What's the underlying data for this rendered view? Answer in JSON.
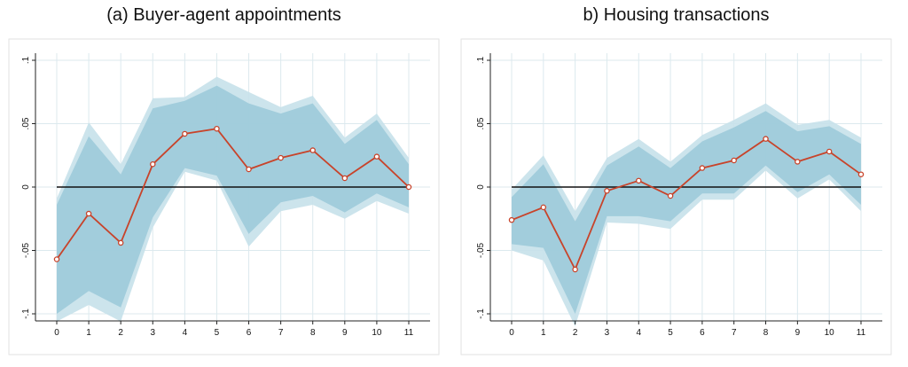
{
  "chart_data": [
    {
      "type": "line",
      "title": "(a) Buyer-agent appointments",
      "xlabel": "",
      "ylabel": "",
      "x": [
        0,
        1,
        2,
        3,
        4,
        5,
        6,
        7,
        8,
        9,
        10,
        11
      ],
      "xlim": [
        0,
        11
      ],
      "ylim": [
        -0.1,
        0.1
      ],
      "y_ticks": [
        0.1,
        0.05,
        0,
        -0.05,
        -0.1
      ],
      "y_tick_labels": [
        ".1",
        ".05",
        "0",
        "-.05",
        "-.1"
      ],
      "x_tick_labels": [
        "0",
        "1",
        "2",
        "3",
        "4",
        "5",
        "6",
        "7",
        "8",
        "9",
        "10",
        "11"
      ],
      "series": [
        {
          "values": [
            -0.057,
            -0.021,
            -0.044,
            0.018,
            0.042,
            0.046,
            0.014,
            0.023,
            0.029,
            0.007,
            0.024,
            0.0
          ]
        }
      ],
      "outer_band": {
        "lower": [
          -0.106,
          -0.093,
          -0.106,
          -0.032,
          0.012,
          0.005,
          -0.047,
          -0.019,
          -0.014,
          -0.025,
          -0.011,
          -0.021
        ],
        "upper": [
          -0.009,
          0.051,
          0.018,
          0.07,
          0.071,
          0.087,
          0.075,
          0.063,
          0.072,
          0.039,
          0.058,
          0.023
        ]
      },
      "inner_band": {
        "lower": [
          -0.1,
          -0.082,
          -0.095,
          -0.024,
          0.015,
          0.009,
          -0.037,
          -0.012,
          -0.007,
          -0.02,
          -0.005,
          -0.016
        ],
        "upper": [
          -0.014,
          0.04,
          0.01,
          0.062,
          0.068,
          0.08,
          0.066,
          0.058,
          0.066,
          0.034,
          0.053,
          0.018
        ]
      },
      "grid": true,
      "zero_line": true,
      "colors": {
        "line": "#c8432a",
        "outer_band": "#c7e1ea",
        "inner_band": "#9fcbdb",
        "grid": "#dce9ee"
      }
    },
    {
      "type": "line",
      "title": "b) Housing transactions",
      "xlabel": "",
      "ylabel": "",
      "x": [
        0,
        1,
        2,
        3,
        4,
        5,
        6,
        7,
        8,
        9,
        10,
        11
      ],
      "xlim": [
        0,
        11
      ],
      "ylim": [
        -0.1,
        0.1
      ],
      "y_ticks": [
        0.1,
        0.05,
        0,
        -0.05,
        -0.1
      ],
      "y_tick_labels": [
        ".1",
        ".05",
        "0",
        "-.05",
        "-.1"
      ],
      "x_tick_labels": [
        "0",
        "1",
        "2",
        "3",
        "4",
        "5",
        "6",
        "7",
        "8",
        "9",
        "10",
        "11"
      ],
      "series": [
        {
          "values": [
            -0.026,
            -0.016,
            -0.065,
            -0.003,
            0.005,
            -0.007,
            0.015,
            0.021,
            0.038,
            0.02,
            0.028,
            0.01
          ]
        }
      ],
      "outer_band": {
        "lower": [
          -0.05,
          -0.058,
          -0.11,
          -0.028,
          -0.029,
          -0.033,
          -0.01,
          -0.01,
          0.013,
          -0.009,
          0.006,
          -0.019
        ],
        "upper": [
          -0.002,
          0.025,
          -0.019,
          0.023,
          0.038,
          0.02,
          0.041,
          0.053,
          0.066,
          0.049,
          0.053,
          0.039
        ]
      },
      "inner_band": {
        "lower": [
          -0.045,
          -0.048,
          -0.1,
          -0.023,
          -0.023,
          -0.027,
          -0.005,
          -0.005,
          0.017,
          -0.004,
          0.01,
          -0.014
        ],
        "upper": [
          -0.008,
          0.018,
          -0.027,
          0.017,
          0.032,
          0.015,
          0.036,
          0.047,
          0.06,
          0.044,
          0.048,
          0.034
        ]
      },
      "grid": true,
      "zero_line": true,
      "colors": {
        "line": "#c8432a",
        "outer_band": "#c7e1ea",
        "inner_band": "#9fcbdb",
        "grid": "#dce9ee"
      }
    }
  ]
}
